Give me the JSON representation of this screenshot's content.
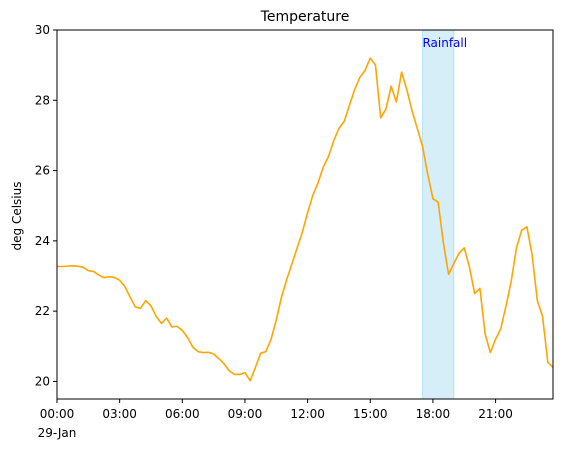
{
  "chart_data": {
    "type": "line",
    "title": "Temperature",
    "xlabel": "",
    "ylabel": "deg Celsius",
    "xlim": [
      "2024-01-29T00:00",
      "2024-01-29T23:45"
    ],
    "ylim": [
      19.5,
      30
    ],
    "yticks": [
      20,
      22,
      24,
      26,
      28,
      30
    ],
    "xtick_times": [
      "00:00",
      "03:00",
      "06:00",
      "09:00",
      "12:00",
      "15:00",
      "18:00",
      "21:00"
    ],
    "xtick_labels": [
      "00:00",
      "03:00",
      "06:00",
      "09:00",
      "12:00",
      "15:00",
      "18:00",
      "21:00"
    ],
    "xtick_sublabel": "29-Jan",
    "grid": false,
    "line_color": "#ffa500",
    "span": {
      "label": "Rainfall",
      "start": "17:30",
      "end": "19:00",
      "color": "#87ceeb",
      "label_color": "#0000ff"
    },
    "series": [
      {
        "name": "",
        "x": [
          "00:00",
          "00:15",
          "00:30",
          "00:45",
          "01:00",
          "01:15",
          "01:30",
          "01:45",
          "02:00",
          "02:15",
          "02:30",
          "02:45",
          "03:00",
          "03:15",
          "03:30",
          "03:45",
          "04:00",
          "04:15",
          "04:30",
          "04:45",
          "05:00",
          "05:15",
          "05:30",
          "05:45",
          "06:00",
          "06:15",
          "06:30",
          "06:45",
          "07:00",
          "07:15",
          "07:30",
          "07:45",
          "08:00",
          "08:15",
          "08:30",
          "08:45",
          "09:00",
          "09:15",
          "09:30",
          "09:45",
          "10:00",
          "10:15",
          "10:30",
          "10:45",
          "11:00",
          "11:15",
          "11:30",
          "11:45",
          "12:00",
          "12:15",
          "12:30",
          "12:45",
          "13:00",
          "13:15",
          "13:30",
          "13:45",
          "14:00",
          "14:15",
          "14:30",
          "14:45",
          "15:00",
          "15:15",
          "15:30",
          "15:45",
          "16:00",
          "16:15",
          "16:30",
          "16:45",
          "17:00",
          "17:15",
          "17:30",
          "17:45",
          "18:00",
          "18:15",
          "18:30",
          "18:45",
          "19:00",
          "19:15",
          "19:30",
          "19:45",
          "20:00",
          "20:15",
          "20:30",
          "20:45",
          "21:00",
          "21:15",
          "21:30",
          "21:45",
          "22:00",
          "22:15",
          "22:30",
          "22:45",
          "23:00",
          "23:15",
          "23:30",
          "23:45"
        ],
        "y": [
          23.27,
          23.27,
          23.28,
          23.29,
          23.28,
          23.25,
          23.15,
          23.13,
          23.03,
          22.95,
          22.98,
          22.96,
          22.88,
          22.7,
          22.4,
          22.12,
          22.08,
          22.3,
          22.15,
          21.85,
          21.65,
          21.8,
          21.55,
          21.57,
          21.45,
          21.25,
          20.98,
          20.85,
          20.82,
          20.83,
          20.78,
          20.65,
          20.5,
          20.3,
          20.2,
          20.2,
          20.25,
          20.02,
          20.4,
          20.8,
          20.85,
          21.2,
          21.75,
          22.4,
          22.9,
          23.35,
          23.8,
          24.25,
          24.8,
          25.3,
          25.65,
          26.1,
          26.4,
          26.85,
          27.2,
          27.4,
          27.85,
          28.3,
          28.65,
          28.85,
          29.2,
          29.0,
          27.5,
          27.75,
          28.4,
          27.95,
          28.8,
          28.3,
          27.7,
          27.2,
          26.7,
          25.9,
          25.2,
          25.1,
          23.95,
          23.05,
          23.35,
          23.65,
          23.8,
          23.25,
          22.5,
          22.65,
          21.35,
          20.82,
          21.2,
          21.5,
          22.15,
          22.85,
          23.8,
          24.3,
          24.4,
          23.6,
          22.3,
          21.85,
          20.55,
          20.4
        ]
      }
    ]
  }
}
